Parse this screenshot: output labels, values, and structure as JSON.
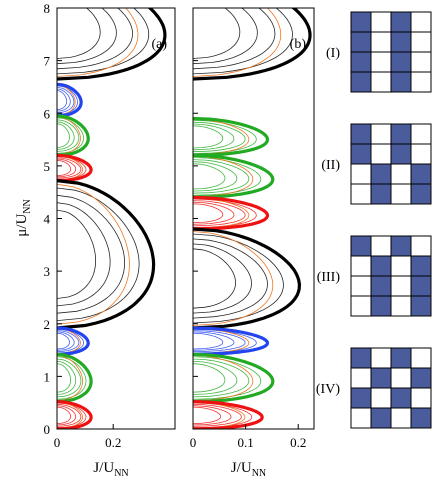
{
  "chart_data": {
    "type": "line",
    "ylabel": {
      "main": "μ/U",
      "sub": "NN"
    },
    "y_ticks": [
      "0",
      "1",
      "2",
      "3",
      "4",
      "5",
      "6",
      "7",
      "8"
    ],
    "ylim": [
      0,
      8
    ],
    "colors": {
      "black": "#000000",
      "blue": "#2244ee",
      "green": "#22aa22",
      "red": "#ee1111",
      "orange": "#ee7722",
      "pattern": "#4a5c9c"
    },
    "panels": [
      {
        "label": "(a)",
        "xlabel": {
          "main": "J/U",
          "sub": "NN"
        },
        "x_ticks": [
          "0",
          "0.2"
        ],
        "xlim": [
          0,
          0.42
        ],
        "lobes": [
          {
            "color": "black",
            "mu_low": 6.65,
            "mu_high": 8.6,
            "j_peak": 0.38,
            "bold": true
          },
          {
            "color": "blue",
            "mu_low": 5.95,
            "mu_high": 6.55,
            "j_peak": 0.085,
            "bold": true
          },
          {
            "color": "green",
            "mu_low": 5.2,
            "mu_high": 5.95,
            "j_peak": 0.11,
            "bold": true
          },
          {
            "color": "red",
            "mu_low": 4.72,
            "mu_high": 5.2,
            "j_peak": 0.12,
            "bold": true
          },
          {
            "color": "black",
            "mu_low": 1.92,
            "mu_high": 4.72,
            "j_peak": 0.34,
            "bold": true
          },
          {
            "color": "blue",
            "mu_low": 1.42,
            "mu_high": 1.92,
            "j_peak": 0.11,
            "bold": true
          },
          {
            "color": "green",
            "mu_low": 0.52,
            "mu_high": 1.42,
            "j_peak": 0.12,
            "bold": true
          },
          {
            "color": "red",
            "mu_low": 0.0,
            "mu_high": 0.52,
            "j_peak": 0.12,
            "bold": true
          }
        ]
      },
      {
        "label": "(b)",
        "xlabel": {
          "main": "J/U",
          "sub": "NN"
        },
        "x_ticks": [
          "0",
          "0.1",
          "0.2"
        ],
        "xlim": [
          0,
          0.23
        ],
        "lobes": [
          {
            "color": "black",
            "mu_low": 6.65,
            "mu_high": 8.6,
            "j_peak": 0.22,
            "bold": true
          },
          {
            "color": "green",
            "mu_low": 5.2,
            "mu_high": 5.9,
            "j_peak": 0.14,
            "bold": true
          },
          {
            "color": "green",
            "mu_low": 4.4,
            "mu_high": 5.2,
            "j_peak": 0.15,
            "bold": true
          },
          {
            "color": "red",
            "mu_low": 3.8,
            "mu_high": 4.4,
            "j_peak": 0.14,
            "bold": true
          },
          {
            "color": "black",
            "mu_low": 1.92,
            "mu_high": 3.8,
            "j_peak": 0.2,
            "bold": true
          },
          {
            "color": "blue",
            "mu_low": 1.42,
            "mu_high": 1.92,
            "j_peak": 0.14,
            "bold": true
          },
          {
            "color": "green",
            "mu_low": 0.52,
            "mu_high": 1.42,
            "j_peak": 0.15,
            "bold": true
          },
          {
            "color": "red",
            "mu_low": 0.0,
            "mu_high": 0.52,
            "j_peak": 0.13,
            "bold": true
          }
        ]
      }
    ]
  },
  "patterns": [
    {
      "label": "(I)",
      "grid": [
        [
          1,
          0,
          1,
          0
        ],
        [
          1,
          0,
          1,
          0
        ],
        [
          1,
          0,
          1,
          0
        ],
        [
          1,
          0,
          1,
          0
        ]
      ]
    },
    {
      "label": "(II)",
      "grid": [
        [
          1,
          0,
          1,
          0
        ],
        [
          1,
          0,
          1,
          0
        ],
        [
          0,
          1,
          0,
          1
        ],
        [
          0,
          1,
          0,
          1
        ]
      ]
    },
    {
      "label": "(III)",
      "grid": [
        [
          1,
          0,
          1,
          0
        ],
        [
          0,
          1,
          0,
          1
        ],
        [
          0,
          1,
          0,
          1
        ],
        [
          0,
          1,
          0,
          1
        ]
      ]
    },
    {
      "label": "(IV)",
      "grid": [
        [
          1,
          0,
          1,
          0
        ],
        [
          0,
          1,
          0,
          1
        ],
        [
          1,
          0,
          1,
          0
        ],
        [
          0,
          1,
          0,
          1
        ]
      ]
    }
  ]
}
